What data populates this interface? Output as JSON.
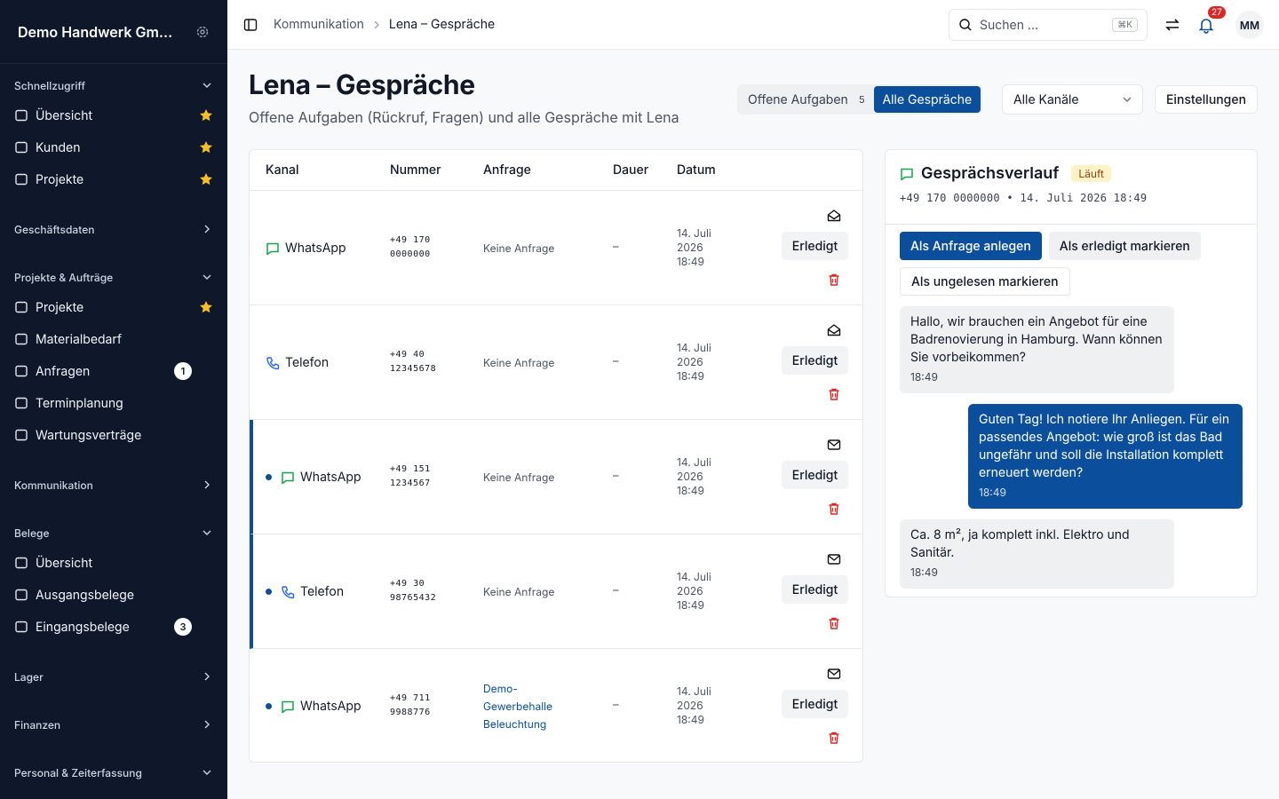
{
  "sidebar": {
    "company": "Demo Handwerk Gm...",
    "sections": [
      {
        "title": "Schnellzugriff",
        "expanded": true,
        "items": [
          {
            "label": "Übersicht",
            "starred": true
          },
          {
            "label": "Kunden",
            "starred": true
          },
          {
            "label": "Projekte",
            "starred": true
          }
        ]
      },
      {
        "title": "Geschäftsdaten",
        "expanded": false,
        "items": []
      },
      {
        "title": "Projekte & Aufträge",
        "expanded": true,
        "items": [
          {
            "label": "Projekte",
            "starred": true
          },
          {
            "label": "Materialbedarf"
          },
          {
            "label": "Anfragen",
            "badge": 1
          },
          {
            "label": "Terminplanung"
          },
          {
            "label": "Wartungsverträge"
          }
        ]
      },
      {
        "title": "Kommunikation",
        "expanded": false,
        "items": []
      },
      {
        "title": "Belege",
        "expanded": true,
        "items": [
          {
            "label": "Übersicht"
          },
          {
            "label": "Ausgangsbelege"
          },
          {
            "label": "Eingangsbelege",
            "badge": 3
          }
        ]
      },
      {
        "title": "Lager",
        "expanded": false,
        "items": []
      },
      {
        "title": "Finanzen",
        "expanded": false,
        "items": []
      },
      {
        "title": "Personal & Zeiterfassung",
        "expanded": true,
        "items": []
      }
    ]
  },
  "topbar": {
    "breadcrumb": [
      "Kommunikation",
      "Lena – Gespräche"
    ],
    "search": "Suchen ...",
    "shortcut": "⌘K",
    "notifications": 27,
    "avatar": "MM"
  },
  "header": {
    "title": "Lena – Gespräche",
    "subtitle": "Offene Aufgaben (Rückruf, Fragen) und alle Gespräche mit Lena",
    "tabs": [
      {
        "label": "Offene Aufgaben",
        "count": 5,
        "active": false
      },
      {
        "label": "Alle Gespräche",
        "active": true
      }
    ],
    "filter": "Alle Kanäle",
    "settings": "Einstellungen"
  },
  "table": {
    "columns": [
      "Kanal",
      "Nummer",
      "Anfrage",
      "Dauer",
      "Datum"
    ],
    "rows": [
      {
        "channel": "WhatsApp",
        "icon": "chat",
        "number": "+49 170 0000000",
        "request": "Keine Anfrage",
        "duration": "–",
        "date": "14. Juli 2026 18:49",
        "action": "Erledigt",
        "unread": false,
        "selected": false,
        "link": false
      },
      {
        "channel": "Telefon",
        "icon": "phone",
        "number": "+49 40 12345678",
        "request": "Keine Anfrage",
        "duration": "–",
        "date": "14. Juli 2026 18:49",
        "action": "Erledigt",
        "unread": false,
        "selected": false,
        "link": false
      },
      {
        "channel": "WhatsApp",
        "icon": "chat",
        "number": "+49 151 1234567",
        "request": "Keine Anfrage",
        "duration": "–",
        "date": "14. Juli 2026 18:49",
        "action": "Erledigt",
        "unread": true,
        "selected": true,
        "link": false
      },
      {
        "channel": "Telefon",
        "icon": "phone",
        "number": "+49 30 98765432",
        "request": "Keine Anfrage",
        "duration": "–",
        "date": "14. Juli 2026 18:49",
        "action": "Erledigt",
        "unread": true,
        "selected": true,
        "link": false
      },
      {
        "channel": "WhatsApp",
        "icon": "chat",
        "number": "+49 711 9988776",
        "request": "Demo-Gewerbehalle Beleuchtung",
        "duration": "–",
        "date": "14. Juli 2026 18:49",
        "action": "Erledigt",
        "unread": true,
        "selected": false,
        "link": true
      }
    ]
  },
  "panel": {
    "title": "Gesprächsverlauf",
    "status": "Läuft",
    "meta": "+49 170 0000000 • 14. Juli 2026 18:49",
    "actions": [
      {
        "label": "Als Anfrage anlegen",
        "primary": true
      },
      {
        "label": "Als erledigt markieren",
        "primary": false
      },
      {
        "label": "Als ungelesen markieren",
        "primary": false
      }
    ],
    "messages": [
      {
        "text": "Hallo, wir brauchen ein Angebot für eine Badrenovierung in Hamburg. Wann können Sie vorbeikommen?",
        "time": "18:49",
        "outgoing": false
      },
      {
        "text": "Guten Tag! Ich notiere Ihr Anliegen. Für ein passendes Angebot: wie groß ist das Bad ungefähr und soll die Installation komplett erneuert werden?",
        "time": "18:49",
        "outgoing": true
      },
      {
        "text": "Ca. 8 m², ja komplett inkl. Elektro und Sanitär.",
        "time": "18:49",
        "outgoing": false
      }
    ]
  }
}
